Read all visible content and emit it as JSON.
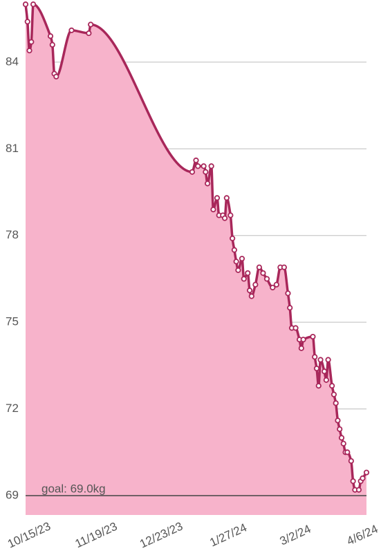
{
  "chart_data": {
    "type": "area",
    "x": [
      "2023-10-13",
      "2023-10-14",
      "2023-10-15",
      "2023-10-16",
      "2023-10-17",
      "2023-10-26",
      "2023-10-27",
      "2023-10-28",
      "2023-10-29",
      "2023-11-06",
      "2023-11-15",
      "2023-11-16",
      "2024-01-08",
      "2024-01-10",
      "2024-01-11",
      "2024-01-14",
      "2024-01-15",
      "2024-01-16",
      "2024-01-18",
      "2024-01-19",
      "2024-01-21",
      "2024-01-22",
      "2024-01-24",
      "2024-01-25",
      "2024-01-26",
      "2024-01-28",
      "2024-01-29",
      "2024-01-30",
      "2024-01-31",
      "2024-02-01",
      "2024-02-03",
      "2024-02-04",
      "2024-02-06",
      "2024-02-07",
      "2024-02-08",
      "2024-02-10",
      "2024-02-12",
      "2024-02-14",
      "2024-02-16",
      "2024-02-19",
      "2024-02-21",
      "2024-02-23",
      "2024-02-25",
      "2024-02-27",
      "2024-02-28",
      "2024-02-29",
      "2024-03-02",
      "2024-03-04",
      "2024-03-05",
      "2024-03-06",
      "2024-03-11",
      "2024-03-12",
      "2024-03-13",
      "2024-03-14",
      "2024-03-15",
      "2024-03-17",
      "2024-03-18",
      "2024-03-19",
      "2024-03-21",
      "2024-03-22",
      "2024-03-23",
      "2024-03-24",
      "2024-03-25",
      "2024-03-26",
      "2024-03-27",
      "2024-03-28",
      "2024-03-29",
      "2024-03-31",
      "2024-04-01",
      "2024-04-02",
      "2024-04-04",
      "2024-04-05",
      "2024-04-06",
      "2024-04-08"
    ],
    "values": [
      86.0,
      85.4,
      84.4,
      84.7,
      86.0,
      84.9,
      84.6,
      83.6,
      83.5,
      85.1,
      85.0,
      85.3,
      80.2,
      80.6,
      80.4,
      80.4,
      80.2,
      79.8,
      80.4,
      78.9,
      79.3,
      78.7,
      78.7,
      78.6,
      79.3,
      78.7,
      77.9,
      77.5,
      77.1,
      76.8,
      77.2,
      76.5,
      76.7,
      76.1,
      75.9,
      76.3,
      76.9,
      76.7,
      76.5,
      76.2,
      76.3,
      76.9,
      76.9,
      76.0,
      75.5,
      74.8,
      74.8,
      74.4,
      74.1,
      74.4,
      74.5,
      73.8,
      73.4,
      72.8,
      73.7,
      73.3,
      73.0,
      73.7,
      72.8,
      72.5,
      72.2,
      71.6,
      71.3,
      71.0,
      70.8,
      70.5,
      70.5,
      70.2,
      69.5,
      69.2,
      69.2,
      69.5,
      69.6,
      69.8
    ],
    "color": "#a8275a",
    "fill": "#f7b3cb",
    "xlim": [
      "2023-10-13",
      "2024-04-08"
    ],
    "xticks": [
      {
        "value": "2023-10-15",
        "label": "10/15/23"
      },
      {
        "value": "2023-11-19",
        "label": "11/19/23"
      },
      {
        "value": "2023-12-23",
        "label": "12/23/23"
      },
      {
        "value": "2024-01-27",
        "label": "1/27/24"
      },
      {
        "value": "2024-03-02",
        "label": "3/2/24"
      },
      {
        "value": "2024-04-06",
        "label": "4/6/24"
      }
    ],
    "ylim": [
      68.33,
      86.15
    ],
    "yticks": [
      69,
      72,
      75,
      78,
      81,
      84
    ],
    "grid": true,
    "goal": {
      "value": 69,
      "label": "goal: 69.0kg"
    }
  }
}
